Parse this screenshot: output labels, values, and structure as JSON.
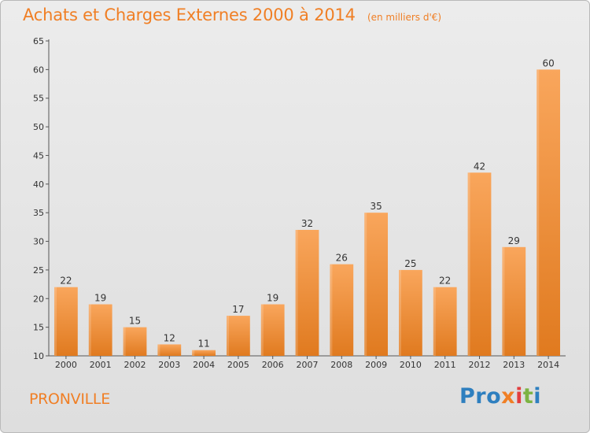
{
  "header": {
    "title": "Achats et Charges Externes 2000 à 2014",
    "subtitle": "(en milliers d'€)"
  },
  "footer": {
    "commune": "PRONVILLE",
    "brand": [
      "Pro",
      "x",
      "i",
      "t",
      "i"
    ]
  },
  "colors": {
    "bar_top": "#f9a65c",
    "bar_bottom": "#e07a1f",
    "accent": "#f07f25"
  },
  "chart_data": {
    "type": "bar",
    "title": "Achats et Charges Externes 2000 à 2014",
    "subtitle": "(en milliers d'€)",
    "categories": [
      "2000",
      "2001",
      "2002",
      "2003",
      "2004",
      "2005",
      "2006",
      "2007",
      "2008",
      "2009",
      "2010",
      "2011",
      "2012",
      "2013",
      "2014"
    ],
    "values": [
      22,
      19,
      15,
      12,
      11,
      17,
      19,
      32,
      26,
      35,
      25,
      22,
      42,
      29,
      60
    ],
    "ylim": [
      10,
      65
    ],
    "yticks": [
      10,
      15,
      20,
      25,
      30,
      35,
      40,
      45,
      50,
      55,
      60,
      65
    ],
    "grid": false,
    "legend": "none"
  }
}
